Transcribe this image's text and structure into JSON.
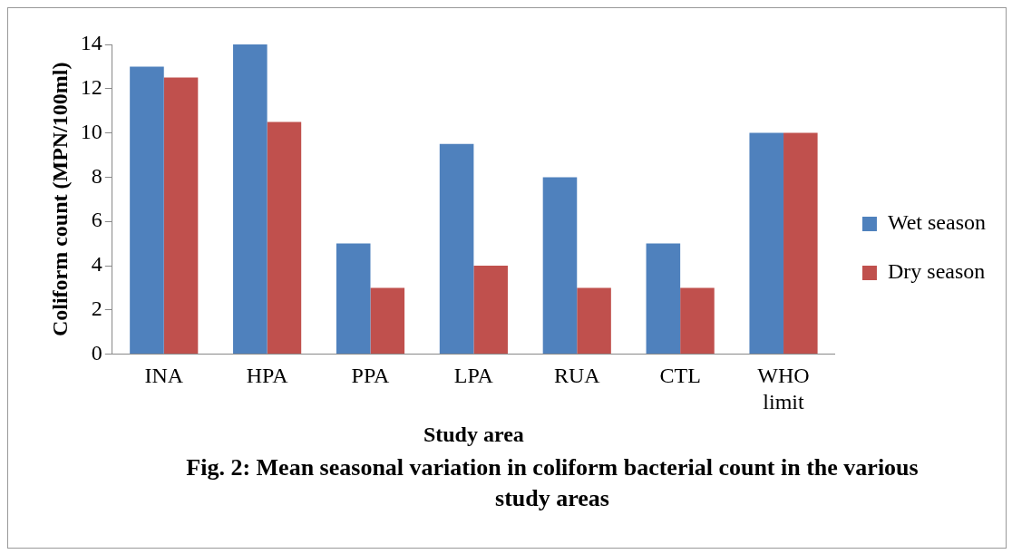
{
  "chart_data": {
    "type": "bar",
    "title": "Fig. 2: Mean seasonal variation in coliform bacterial count in the various study areas",
    "xlabel": "Study area",
    "ylabel": "Coliform count (MPN/100ml)",
    "categories": [
      "INA",
      "HPA",
      "PPA",
      "LPA",
      "RUA",
      "CTL",
      "WHO limit"
    ],
    "series": [
      {
        "name": "Wet season",
        "color": "#4f81bd",
        "values": [
          13,
          14,
          5,
          9.5,
          8,
          5,
          10
        ]
      },
      {
        "name": "Dry season",
        "color": "#c0504d",
        "values": [
          12.5,
          10.5,
          3,
          4,
          3,
          3,
          10
        ]
      }
    ],
    "ylim": [
      0,
      14
    ],
    "yticks": [
      0,
      2,
      4,
      6,
      8,
      10,
      12,
      14
    ],
    "grid": false,
    "legend": "right"
  }
}
